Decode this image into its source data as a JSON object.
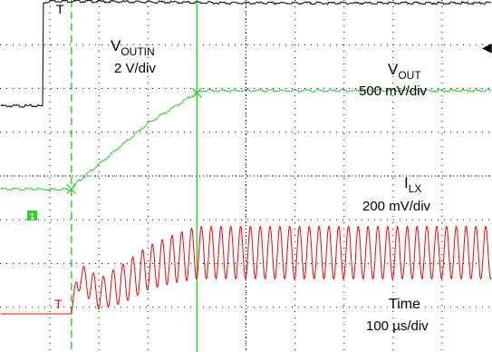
{
  "chart_data": {
    "type": "line",
    "title": "",
    "xlabel": "",
    "ylabel": "",
    "grid": true,
    "background": "#ffffff",
    "annotations": {
      "voutin": {
        "name": "V",
        "sub": "OUTIN",
        "scale": "2 V/div"
      },
      "vout": {
        "name": "V",
        "sub": "OUT",
        "scale": "500 mV/div"
      },
      "ilx": {
        "name": "I",
        "sub": "LX",
        "scale": "200 mV/div"
      },
      "time": {
        "name": "Time",
        "scale": "100 µs/div"
      }
    },
    "channel_markers": {
      "vout_marker": "1",
      "ilx_marker": "T"
    },
    "series": [
      {
        "id": "voutin",
        "color": "#000000",
        "x": [
          0,
          0.85,
          0.85,
          1.0,
          5.0,
          10.0
        ],
        "y": [
          1.6,
          1.6,
          3.95,
          4.0,
          3.95,
          3.95
        ]
      },
      {
        "id": "vout",
        "color": "#33cc33",
        "x": [
          0,
          1.44,
          1.5,
          3.0,
          4.0,
          4.1,
          10.0
        ],
        "y": [
          -0.3,
          -0.3,
          -0.2,
          1.2,
          1.9,
          1.95,
          1.95
        ]
      },
      {
        "id": "ilx",
        "color": "#ff0000",
        "x": [
          0,
          1.44,
          1.55,
          1.75,
          2.0,
          2.5,
          3.0,
          3.5,
          4.0,
          5.0,
          6.0,
          7.0,
          8.0,
          9.0,
          10.0
        ],
        "y_center": [
          -3.15,
          -3.15,
          -2.35,
          -2.4,
          -2.7,
          -2.45,
          -2.1,
          -1.9,
          -1.75,
          -1.75,
          -1.75,
          -1.75,
          -1.75,
          -1.75,
          -1.75
        ],
        "amplitude": [
          0,
          0,
          0.25,
          0.35,
          0.35,
          0.45,
          0.5,
          0.55,
          0.6,
          0.6,
          0.6,
          0.6,
          0.6,
          0.6,
          0.6
        ],
        "period": 0.2
      }
    ],
    "cursors": [
      {
        "id": "trigger-cursor",
        "x": 1.44,
        "color": "#33cc33",
        "style": "dashed"
      },
      {
        "id": "measure-cursor",
        "x": 4.0,
        "color": "#33cc33",
        "style": "solid"
      }
    ],
    "xlim": [
      0,
      10
    ],
    "ylim": [
      -4,
      4
    ]
  }
}
